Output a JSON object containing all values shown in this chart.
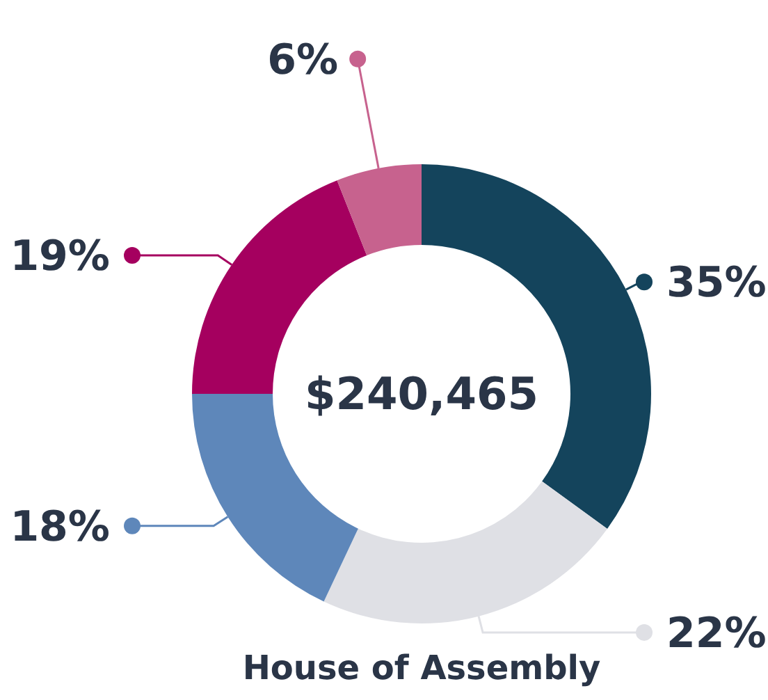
{
  "chart_data": {
    "type": "donut",
    "title": "House of Assembly",
    "categories": [
      null,
      null,
      null,
      null,
      null
    ],
    "values": [
      35,
      22,
      18,
      19,
      6
    ],
    "colors": [
      "#14445c",
      "#dfe0e5",
      "#5e87ba",
      "#a5005f",
      "#c7628e"
    ],
    "value_labels": [
      "35%",
      "22%",
      "18%",
      "19%",
      "6%"
    ],
    "annotations": [
      "$240,465"
    ]
  }
}
